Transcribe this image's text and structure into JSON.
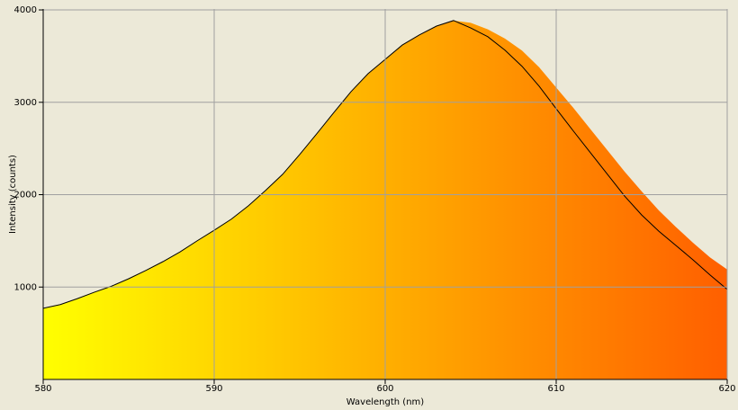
{
  "chart_data": {
    "type": "line",
    "xlabel": "Wavelength (nm)",
    "ylabel": "Intensity (counts)",
    "x": [
      580,
      581,
      582,
      583,
      584,
      585,
      586,
      587,
      588,
      589,
      590,
      591,
      592,
      593,
      594,
      595,
      596,
      597,
      598,
      599,
      600,
      601,
      602,
      603,
      604,
      605,
      606,
      607,
      608,
      609,
      610,
      611,
      612,
      613,
      614,
      615,
      616,
      617,
      618,
      619,
      620
    ],
    "series": [
      {
        "fill": true,
        "gradient": [
          "#ffff00",
          "#ff5f00"
        ],
        "values": [
          770,
          810,
          875,
          945,
          1010,
          1090,
          1180,
          1275,
          1380,
          1500,
          1615,
          1735,
          1880,
          2045,
          2220,
          2435,
          2660,
          2890,
          3115,
          3310,
          3465,
          3620,
          3730,
          3825,
          3885,
          3860,
          3790,
          3690,
          3560,
          3380,
          3160,
          2940,
          2710,
          2480,
          2250,
          2035,
          1830,
          1650,
          1480,
          1320,
          1190
        ]
      },
      {
        "color": "#000000",
        "values": [
          770,
          810,
          875,
          945,
          1010,
          1090,
          1180,
          1275,
          1380,
          1500,
          1615,
          1735,
          1880,
          2045,
          2220,
          2435,
          2660,
          2890,
          3115,
          3310,
          3465,
          3620,
          3730,
          3825,
          3885,
          3805,
          3710,
          3565,
          3390,
          3175,
          2930,
          2690,
          2455,
          2220,
          1985,
          1780,
          1605,
          1450,
          1295,
          1130,
          975
        ]
      }
    ],
    "xlim": [
      580,
      620
    ],
    "xticks": [
      580,
      590,
      600,
      610,
      620
    ],
    "ylim": [
      0,
      4010
    ],
    "yticks": [
      1000,
      2000,
      3000,
      4000
    ],
    "grid": true
  }
}
